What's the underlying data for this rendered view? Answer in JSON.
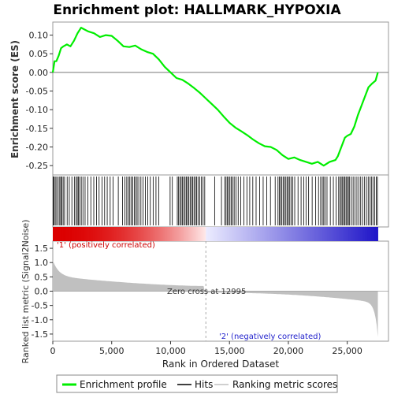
{
  "chart_data": {
    "type": "line",
    "title": "Enrichment plot: HALLMARK_HYPOXIA",
    "ylabel_top": "Enrichment score (ES)",
    "ylabel_bottom": "Ranked list metric (Signal2Noise)",
    "xlabel": "Rank in Ordered Dataset",
    "x_range": [
      0,
      28500
    ],
    "es_ylim": [
      -0.275,
      0.135
    ],
    "metric_ylim": [
      -1.75,
      1.75
    ],
    "x_ticks": [
      0,
      5000,
      10000,
      15000,
      20000,
      25000
    ],
    "es_ticks": [
      0.1,
      0.05,
      0.0,
      -0.05,
      -0.1,
      -0.15,
      -0.2,
      -0.25
    ],
    "metric_ticks": [
      1.5,
      1.0,
      0.5,
      0.0,
      -0.5,
      -1.0,
      -1.5
    ],
    "dataset_size": 27600,
    "zero_cross_rank": 12995,
    "zero_cross_label": "Zero cross at 12995",
    "pos_label": "'1' (positively correlated)",
    "neg_label": "'2' (negatively correlated)",
    "legend": [
      "Enrichment profile",
      "Hits",
      "Ranking metric scores"
    ],
    "colors": {
      "es": "#00ee00",
      "pos": "#cc0000",
      "neg": "#0000cc",
      "metric": "#c0c0c0"
    },
    "enrichment_profile": {
      "x": [
        0,
        150,
        300,
        500,
        700,
        900,
        1200,
        1500,
        1800,
        2100,
        2400,
        2700,
        3000,
        3500,
        4000,
        4500,
        5000,
        5500,
        6000,
        6500,
        7000,
        7500,
        8000,
        8500,
        9000,
        9500,
        10000,
        10500,
        11000,
        11500,
        12000,
        12500,
        13000,
        13500,
        14000,
        14500,
        15000,
        15500,
        16000,
        16500,
        17000,
        17500,
        18000,
        18500,
        19000,
        19500,
        20000,
        20500,
        21000,
        21500,
        22000,
        22500,
        23000,
        23500,
        24000,
        24200,
        24500,
        24800,
        25000,
        25300,
        25600,
        25900,
        26200,
        26500,
        26800,
        27100,
        27400,
        27600
      ],
      "y": [
        0.0,
        0.03,
        0.03,
        0.045,
        0.065,
        0.07,
        0.075,
        0.07,
        0.085,
        0.105,
        0.12,
        0.115,
        0.11,
        0.105,
        0.095,
        0.1,
        0.098,
        0.085,
        0.07,
        0.068,
        0.072,
        0.062,
        0.055,
        0.05,
        0.035,
        0.015,
        0.0,
        -0.015,
        -0.02,
        -0.03,
        -0.042,
        -0.055,
        -0.07,
        -0.085,
        -0.1,
        -0.118,
        -0.135,
        -0.148,
        -0.158,
        -0.168,
        -0.18,
        -0.19,
        -0.198,
        -0.2,
        -0.208,
        -0.222,
        -0.232,
        -0.228,
        -0.235,
        -0.24,
        -0.245,
        -0.24,
        -0.25,
        -0.24,
        -0.235,
        -0.225,
        -0.2,
        -0.175,
        -0.17,
        -0.165,
        -0.145,
        -0.115,
        -0.09,
        -0.065,
        -0.04,
        -0.03,
        -0.022,
        0.0
      ]
    },
    "hits": [
      50,
      110,
      210,
      330,
      460,
      590,
      680,
      760,
      880,
      1000,
      1220,
      1400,
      1620,
      1830,
      1970,
      2080,
      2180,
      2280,
      2420,
      2560,
      2740,
      2980,
      3230,
      3480,
      3720,
      3930,
      4180,
      4400,
      4620,
      4870,
      5120,
      5560,
      5920,
      6120,
      6280,
      6420,
      6540,
      6670,
      6790,
      6920,
      7040,
      7160,
      7300,
      7480,
      7660,
      7860,
      8060,
      8280,
      8520,
      8760,
      8990,
      9960,
      10150,
      10570,
      10680,
      10790,
      10900,
      11010,
      11120,
      11230,
      11340,
      11440,
      11550,
      11660,
      11770,
      11880,
      11990,
      12100,
      12210,
      12330,
      12480,
      12620,
      12760,
      12900,
      13740,
      14320,
      14600,
      14710,
      14820,
      14930,
      15040,
      15150,
      15270,
      15400,
      15560,
      15740,
      15960,
      16220,
      16480,
      16720,
      16980,
      17260,
      17560,
      17860,
      18160,
      18480,
      18880,
      19120,
      19230,
      19340,
      19450,
      19560,
      19680,
      19790,
      19900,
      20010,
      20120,
      20240,
      20380,
      20540,
      20820,
      21080,
      21300,
      21500,
      21720,
      22020,
      22320,
      22560,
      22740,
      22880,
      23000,
      23120,
      23280,
      23560,
      23820,
      24060,
      24270,
      24380,
      24490,
      24600,
      24700,
      24800,
      24900,
      25000,
      25100,
      25200,
      25350,
      25500,
      25660,
      25820,
      25980,
      26140,
      26300,
      26470,
      26630,
      26780,
      26920,
      27050,
      27180,
      27320,
      27460,
      27560
    ]
  }
}
